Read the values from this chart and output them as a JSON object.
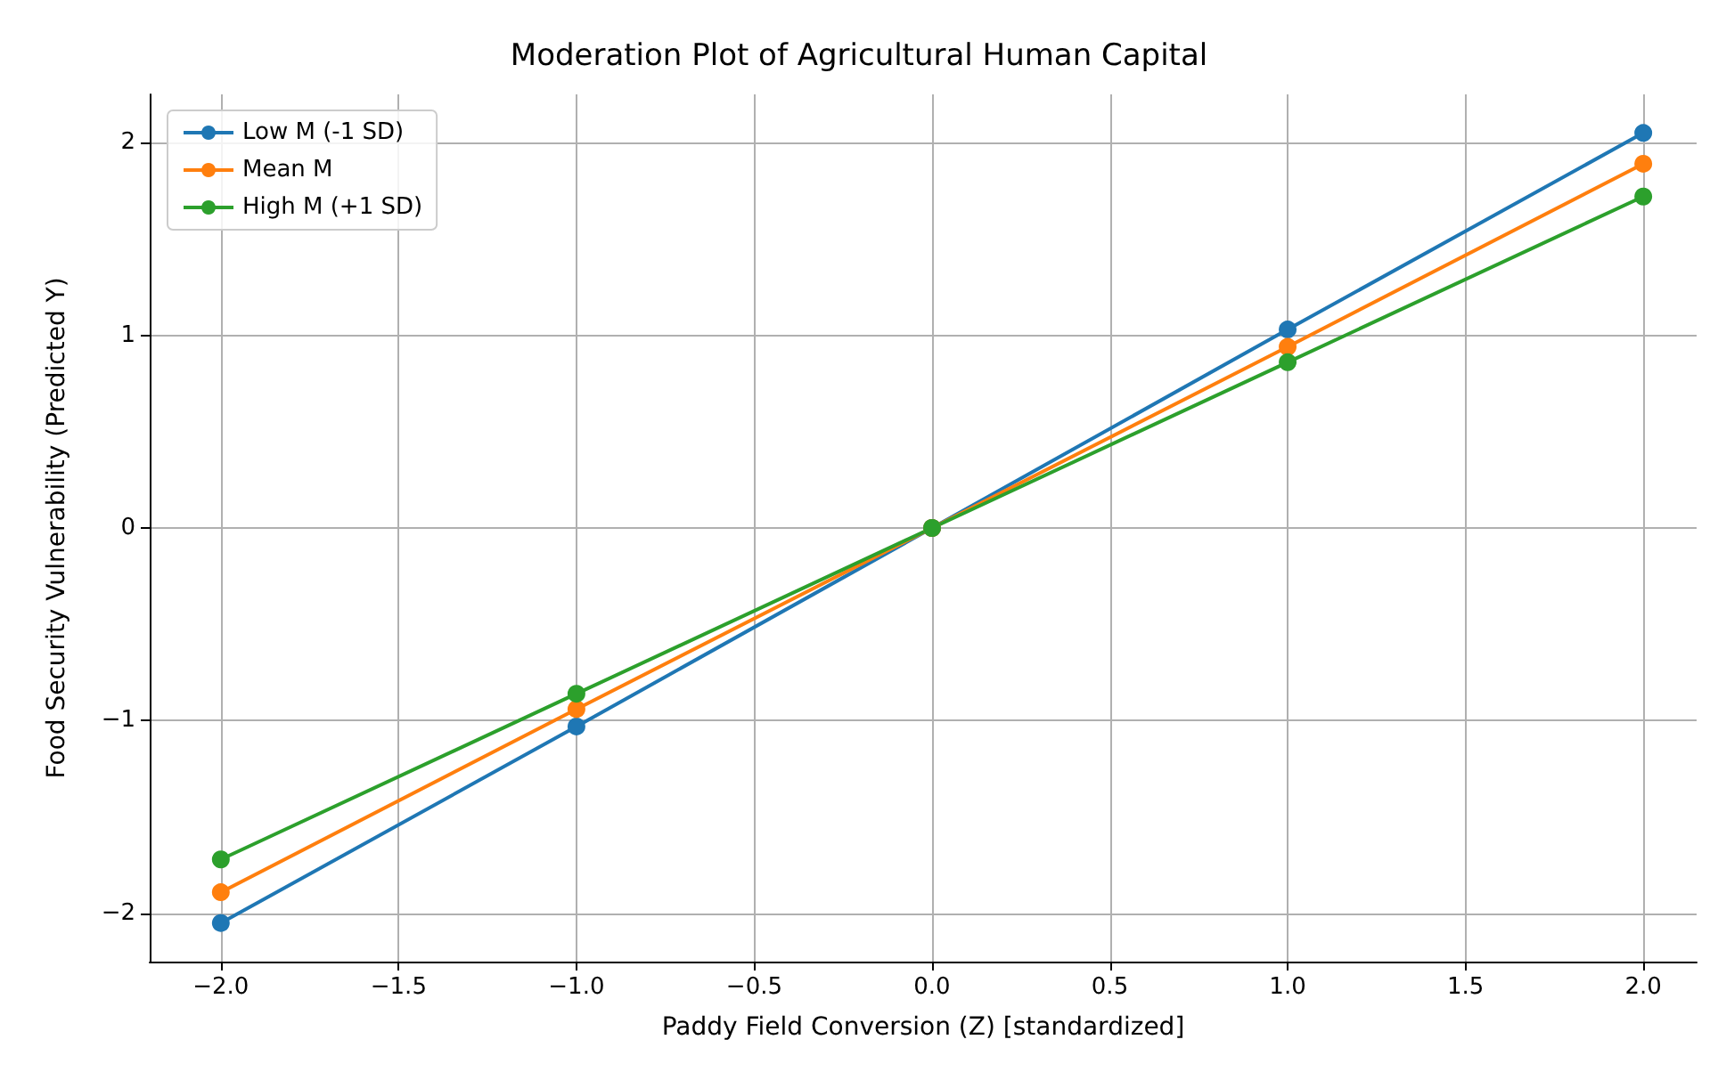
{
  "chart_data": {
    "type": "line",
    "title": "Moderation Plot of Agricultural Human Capital",
    "xlabel": "Paddy Field Conversion (Z) [standardized]",
    "ylabel": "Food Security Vulnerability (Predicted Y)",
    "x": [
      -2,
      -1,
      0,
      1,
      2
    ],
    "series": [
      {
        "name": "Low M (-1 SD)",
        "color": "#1f77b4",
        "values": [
          -2.05,
          -1.03,
          0,
          1.03,
          2.05
        ]
      },
      {
        "name": "Mean M",
        "color": "#ff7f0e",
        "values": [
          -1.89,
          -0.94,
          0,
          0.94,
          1.89
        ]
      },
      {
        "name": "High M (+1 SD)",
        "color": "#2ca02c",
        "values": [
          -1.72,
          -0.86,
          0,
          0.86,
          1.72
        ]
      }
    ],
    "xlim": [
      -2.2,
      2.15
    ],
    "ylim": [
      -2.25,
      2.25
    ],
    "xticks": [
      {
        "value": -2,
        "label": "−2.0"
      },
      {
        "value": -1.5,
        "label": "−1.5"
      },
      {
        "value": -1,
        "label": "−1.0"
      },
      {
        "value": -0.5,
        "label": "−0.5"
      },
      {
        "value": 0,
        "label": "0.0"
      },
      {
        "value": 0.5,
        "label": "0.5"
      },
      {
        "value": 1,
        "label": "1.0"
      },
      {
        "value": 1.5,
        "label": "1.5"
      },
      {
        "value": 2,
        "label": "2.0"
      }
    ],
    "yticks": [
      {
        "value": -2,
        "label": "−2"
      },
      {
        "value": -1,
        "label": "−1"
      },
      0,
      1,
      2
    ],
    "grid": true,
    "legend": "top left",
    "marker": "circle",
    "line_style": "solid"
  }
}
